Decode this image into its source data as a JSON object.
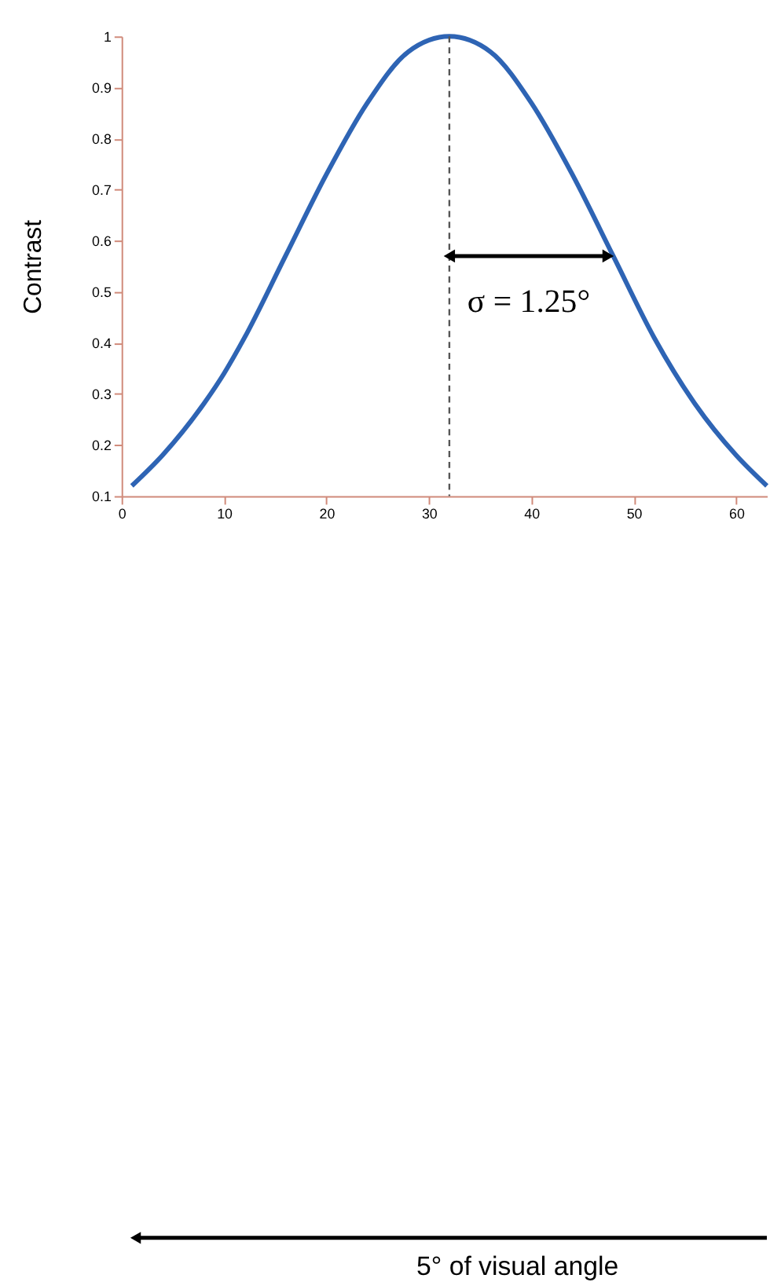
{
  "chart_data": {
    "type": "line",
    "ylabel": "Contrast",
    "x": [
      1,
      4,
      8,
      10,
      12,
      16,
      20,
      24,
      28,
      32,
      36,
      40,
      44,
      48,
      52,
      56,
      60,
      63
    ],
    "series": [
      {
        "color": "#2e64b4",
        "values": [
          0.12,
          0.18,
          0.28,
          0.34,
          0.41,
          0.57,
          0.73,
          0.87,
          0.97,
          1.0,
          0.97,
          0.87,
          0.73,
          0.57,
          0.41,
          0.28,
          0.18,
          0.12
        ]
      }
    ],
    "xlim": [
      0,
      63
    ],
    "xticks": [
      0,
      10,
      20,
      30,
      40,
      50,
      60
    ],
    "ylim": [
      0.1,
      1
    ],
    "yticks": [
      0.1,
      0.2,
      0.3,
      0.4,
      0.5,
      0.6,
      0.7,
      0.8,
      0.9,
      1
    ],
    "grid": false,
    "legend": false,
    "marker": "none",
    "line_style": "solid",
    "ref_lines": [
      {
        "axis": "x",
        "value": 32,
        "label": null,
        "color": "#555555",
        "line_style": "dashed"
      }
    ],
    "annotations": [
      {
        "text": "σ = 1.25°",
        "x": 47.5,
        "y": 0.57
      },
      "5° of visual angle"
    ]
  }
}
